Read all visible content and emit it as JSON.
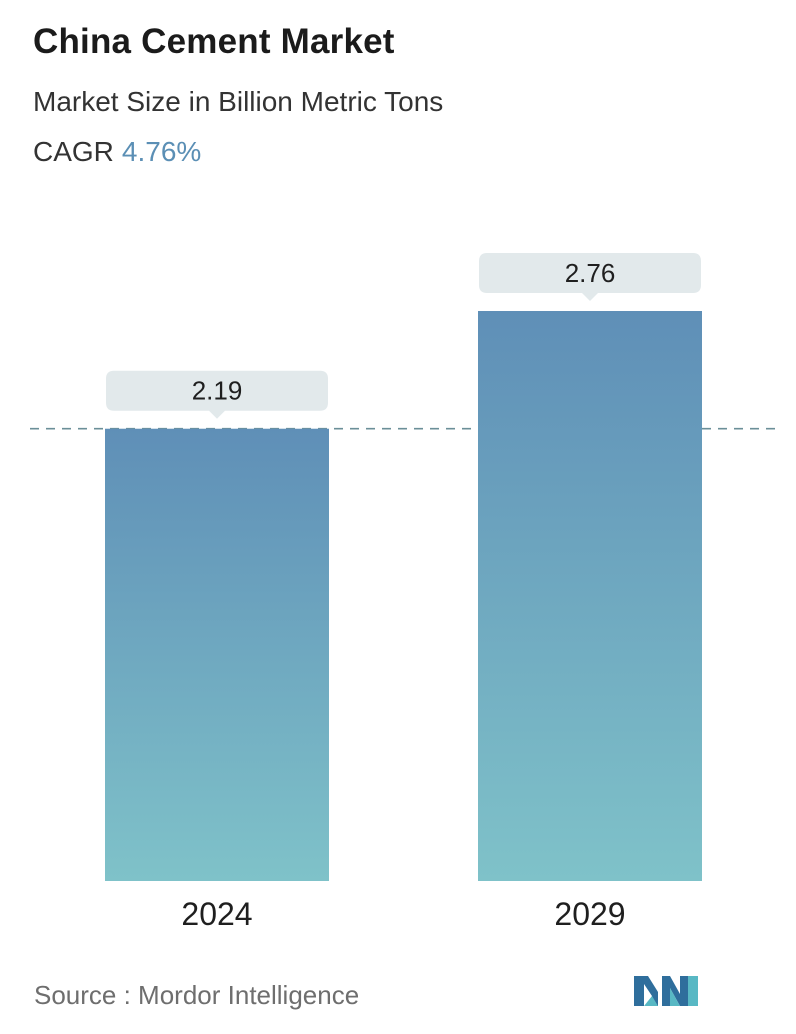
{
  "header": {
    "title": "China Cement Market",
    "subtitle": "Market Size in Billion Metric Tons",
    "cagr_label": "CAGR",
    "cagr_value": "4.76%"
  },
  "colors": {
    "accent": "#5b8fb5",
    "bar_top": "#5f8fb7",
    "bar_bottom": "#7fc2c9",
    "label_box": "#e2e9eb",
    "dash_line": "#6b8f98"
  },
  "chart_data": {
    "type": "bar",
    "categories": [
      "2024",
      "2029"
    ],
    "values": [
      2.19,
      2.76
    ],
    "data_labels": [
      "2.19",
      "2.76"
    ],
    "title": "China Cement Market",
    "subtitle": "Market Size in Billion Metric Tons",
    "reference_line": 2.19,
    "grid": false,
    "legend": "none"
  },
  "footer": {
    "source_text": "Source :  Mordor Intelligence",
    "logo": "mordor-intelligence-logo"
  }
}
